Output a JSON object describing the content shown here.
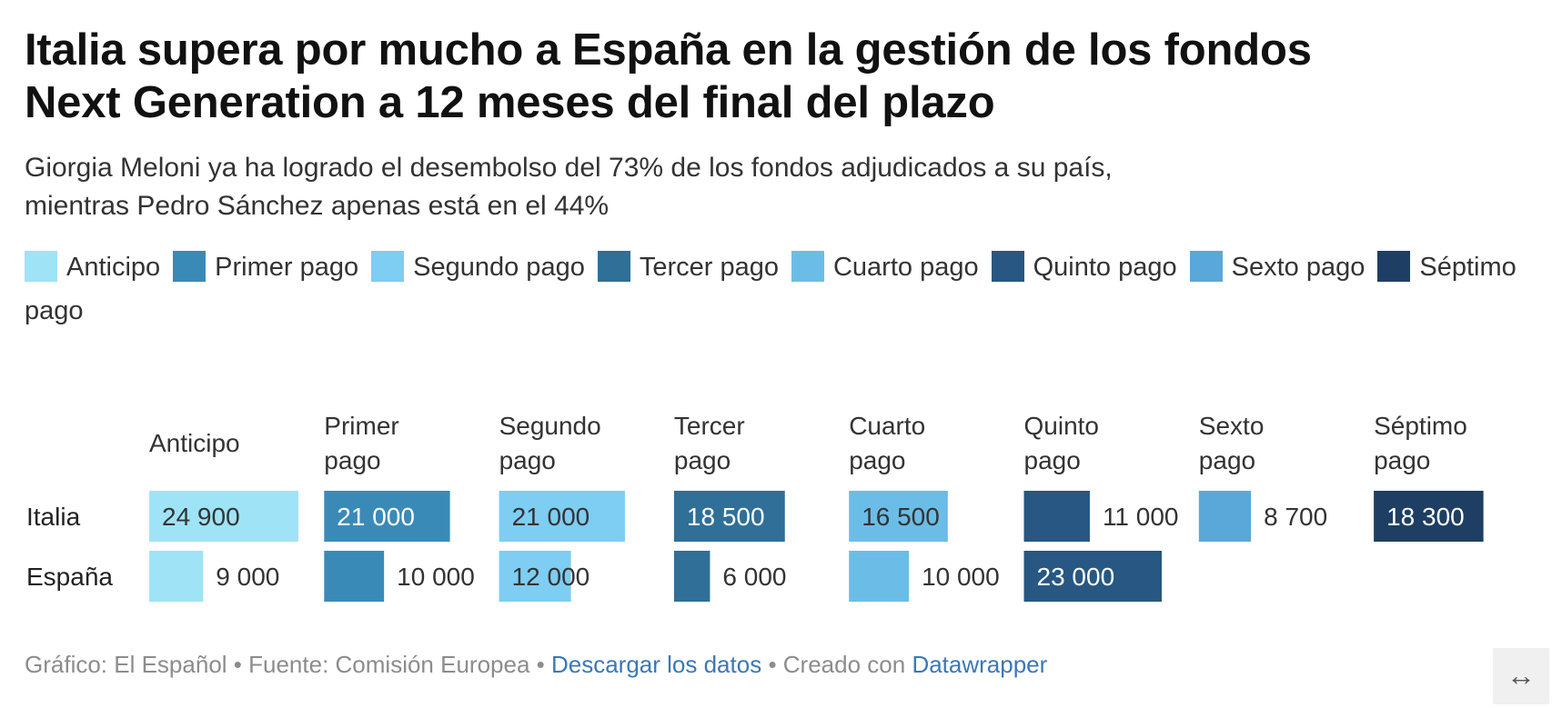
{
  "header": {
    "title_line1": "Italia supera por mucho a España en la gestión de los fondos",
    "title_line2": "Next Generation a 12 meses del final del plazo",
    "subtitle_line1": "Giorgia Meloni ya ha logrado el desembolso del 73% de los fondos adjudicados a su país,",
    "subtitle_line2": "mientras Pedro Sánchez apenas está en el 44%"
  },
  "legend": [
    {
      "label": "Anticipo",
      "color": "#9fe3f7"
    },
    {
      "label": "Primer pago",
      "color": "#3a8ab8"
    },
    {
      "label": "Segundo pago",
      "color": "#7ecdf3"
    },
    {
      "label": "Tercer pago",
      "color": "#2f6f98"
    },
    {
      "label": "Cuarto pago",
      "color": "#6bbde8"
    },
    {
      "label": "Quinto pago",
      "color": "#275782"
    },
    {
      "label": "Sexto pago",
      "color": "#5aa8d9"
    },
    {
      "label": "Séptimo pago",
      "color": "#1e3e64"
    }
  ],
  "chart_data": {
    "type": "bar",
    "categories": [
      "Anticipo",
      "Primer pago",
      "Segundo pago",
      "Tercer pago",
      "Cuarto pago",
      "Quinto pago",
      "Sexto pago",
      "Séptimo pago"
    ],
    "series": [
      {
        "name": "Italia",
        "values": [
          24900,
          21000,
          21000,
          18500,
          16500,
          11000,
          8700,
          18300
        ]
      },
      {
        "name": "España",
        "values": [
          9000,
          10000,
          12000,
          6000,
          10000,
          23000,
          null,
          null
        ]
      }
    ],
    "value_labels": {
      "Italia": [
        "24 900",
        "21 000",
        "21 000",
        "18 500",
        "16 500",
        "11 000",
        "8 700",
        "18 300"
      ],
      "España": [
        "9 000",
        "10 000",
        "12 000",
        "6 000",
        "10 000",
        "23 000",
        "",
        ""
      ]
    },
    "column_headers": [
      [
        "Anticipo"
      ],
      [
        "Primer",
        "pago"
      ],
      [
        "Segundo",
        "pago"
      ],
      [
        "Tercer",
        "pago"
      ],
      [
        "Cuarto",
        "pago"
      ],
      [
        "Quinto",
        "pago"
      ],
      [
        "Sexto",
        "pago"
      ],
      [
        "Séptimo",
        "pago"
      ]
    ],
    "colors": [
      "#9fe3f7",
      "#3a8ab8",
      "#7ecdf3",
      "#2f6f98",
      "#6bbde8",
      "#275782",
      "#5aa8d9",
      "#1e3e64"
    ],
    "max_value": 24900
  },
  "footer": {
    "credit": "Gráfico: El Español",
    "sep1": " • ",
    "source": "Fuente: Comisión Europea",
    "sep2": " • ",
    "download": "Descargar los datos",
    "sep3": " • ",
    "created": "Creado con ",
    "datawrapper": "Datawrapper"
  },
  "controls": {
    "expand_icon": "↔"
  }
}
